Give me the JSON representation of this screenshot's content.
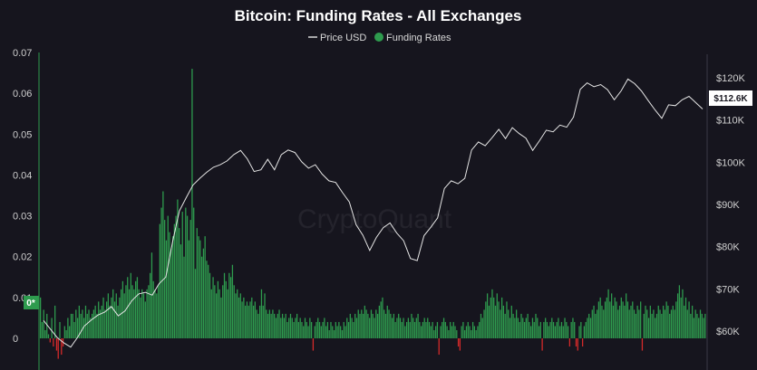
{
  "chart_data": {
    "type": "bar",
    "title": "Bitcoin: Funding Rates - All Exchanges",
    "legend": [
      {
        "label": "Price USD",
        "color": "#d9d9d9",
        "marker": "line"
      },
      {
        "label": "Funding Rates",
        "color": "#2e9b4e",
        "marker": "dot"
      }
    ],
    "legend_position": "top-center",
    "watermark": "CryptoQuant",
    "left_axis": {
      "ticks": [
        0,
        0.01,
        0.02,
        0.03,
        0.04,
        0.05,
        0.06,
        0.07
      ],
      "tick_labels": [
        "0",
        "0.01",
        "0.02",
        "0.03",
        "0.04",
        "0.05",
        "0.06",
        "0.07"
      ],
      "ylim": [
        0,
        0.07
      ]
    },
    "right_axis": {
      "ticks": [
        60000,
        70000,
        80000,
        90000,
        100000,
        110000,
        120000
      ],
      "tick_labels": [
        "$60K",
        "$70K",
        "$80K",
        "$90K",
        "$100K",
        "$110K",
        "$120K"
      ],
      "ylim": [
        58000,
        125000
      ]
    },
    "badges": {
      "funding_current": {
        "label": "0*",
        "value": 0.008,
        "color": "#2e9b4e"
      },
      "price_current": {
        "label": "$112.6K",
        "value": 112600,
        "color": "#ffffff"
      }
    },
    "grid": false,
    "series": [
      {
        "name": "Price USD",
        "type": "line",
        "axis": "right",
        "color": "#e6e6e6",
        "values": [
          [
            0,
            62500
          ],
          [
            1,
            60500
          ],
          [
            2,
            58500
          ],
          [
            3,
            57200
          ],
          [
            4,
            56200
          ],
          [
            5,
            58500
          ],
          [
            6,
            61200
          ],
          [
            7,
            62600
          ],
          [
            8,
            63800
          ],
          [
            9,
            64500
          ],
          [
            10,
            65800
          ],
          [
            11,
            63600
          ],
          [
            12,
            64800
          ],
          [
            13,
            67200
          ],
          [
            14,
            68800
          ],
          [
            15,
            69200
          ],
          [
            16,
            68500
          ],
          [
            17,
            71200
          ],
          [
            18,
            72800
          ],
          [
            19,
            81200
          ],
          [
            20,
            88500
          ],
          [
            21,
            91600
          ],
          [
            22,
            94600
          ],
          [
            23,
            96200
          ],
          [
            24,
            97600
          ],
          [
            25,
            98800
          ],
          [
            26,
            99400
          ],
          [
            27,
            100300
          ],
          [
            28,
            101800
          ],
          [
            29,
            102800
          ],
          [
            30,
            100800
          ],
          [
            31,
            97800
          ],
          [
            32,
            98200
          ],
          [
            33,
            100700
          ],
          [
            34,
            98200
          ],
          [
            35,
            101800
          ],
          [
            36,
            102900
          ],
          [
            37,
            102300
          ],
          [
            38,
            100100
          ],
          [
            39,
            98600
          ],
          [
            40,
            99400
          ],
          [
            41,
            97200
          ],
          [
            42,
            95600
          ],
          [
            43,
            95200
          ],
          [
            44,
            92800
          ],
          [
            45,
            90600
          ],
          [
            46,
            85200
          ],
          [
            47,
            82700
          ],
          [
            48,
            79100
          ],
          [
            49,
            82200
          ],
          [
            50,
            84500
          ],
          [
            51,
            85600
          ],
          [
            52,
            83200
          ],
          [
            53,
            81400
          ],
          [
            54,
            77200
          ],
          [
            55,
            76700
          ],
          [
            56,
            82600
          ],
          [
            57,
            84600
          ],
          [
            58,
            86800
          ],
          [
            59,
            93800
          ],
          [
            60,
            95600
          ],
          [
            61,
            94900
          ],
          [
            62,
            96200
          ],
          [
            63,
            102900
          ],
          [
            64,
            104800
          ],
          [
            65,
            103900
          ],
          [
            66,
            105800
          ],
          [
            67,
            107800
          ],
          [
            68,
            105600
          ],
          [
            69,
            108200
          ],
          [
            70,
            106800
          ],
          [
            71,
            105700
          ],
          [
            72,
            102800
          ],
          [
            73,
            105100
          ],
          [
            74,
            107600
          ],
          [
            75,
            107200
          ],
          [
            76,
            108800
          ],
          [
            77,
            108300
          ],
          [
            78,
            110700
          ],
          [
            79,
            117300
          ],
          [
            80,
            118800
          ],
          [
            81,
            117900
          ],
          [
            82,
            118400
          ],
          [
            83,
            117200
          ],
          [
            84,
            114800
          ],
          [
            85,
            116900
          ],
          [
            86,
            119700
          ],
          [
            87,
            118600
          ],
          [
            88,
            116900
          ],
          [
            89,
            114600
          ],
          [
            90,
            112400
          ],
          [
            91,
            110400
          ],
          [
            92,
            113600
          ],
          [
            93,
            113400
          ],
          [
            94,
            114800
          ],
          [
            95,
            115600
          ],
          [
            96,
            114100
          ],
          [
            97,
            112600
          ]
        ]
      },
      {
        "name": "Funding Rates",
        "type": "bar",
        "axis": "left",
        "positive_color": "#2e9b4e",
        "negative_color": "#d62a2a",
        "values": [
          0.01,
          0.004,
          0.007,
          0.002,
          0.006,
          0.001,
          -0.001,
          0.005,
          -0.002,
          0.008,
          -0.003,
          -0.005,
          0.004,
          -0.004,
          -0.002,
          0.003,
          0.002,
          0.005,
          0.003,
          0.006,
          0.006,
          0.004,
          0.007,
          0.005,
          0.008,
          0.006,
          0.007,
          0.005,
          0.008,
          0.006,
          0.007,
          0.005,
          0.006,
          0.007,
          0.008,
          0.006,
          0.009,
          0.007,
          0.008,
          0.01,
          0.007,
          0.009,
          0.011,
          0.008,
          0.01,
          0.012,
          0.009,
          0.011,
          0.008,
          0.01,
          0.012,
          0.014,
          0.011,
          0.013,
          0.015,
          0.012,
          0.016,
          0.013,
          0.012,
          0.014,
          0.015,
          0.012,
          0.01,
          0.012,
          0.011,
          0.009,
          0.012,
          0.013,
          0.016,
          0.021,
          0.014,
          0.012,
          0.011,
          0.013,
          0.028,
          0.032,
          0.036,
          0.029,
          0.024,
          0.03,
          0.026,
          0.022,
          0.025,
          0.028,
          0.03,
          0.034,
          0.027,
          0.023,
          0.031,
          0.02,
          0.032,
          0.03,
          0.024,
          0.029,
          0.066,
          0.032,
          0.017,
          0.027,
          0.025,
          0.024,
          0.02,
          0.022,
          0.025,
          0.019,
          0.018,
          0.016,
          0.012,
          0.015,
          0.013,
          0.011,
          0.014,
          0.012,
          0.01,
          0.013,
          0.016,
          0.014,
          0.012,
          0.016,
          0.015,
          0.018,
          0.013,
          0.011,
          0.012,
          0.01,
          0.011,
          0.009,
          0.01,
          0.008,
          0.009,
          0.008,
          0.009,
          0.01,
          0.008,
          0.009,
          0.007,
          0.006,
          0.008,
          0.012,
          0.008,
          0.011,
          0.007,
          0.006,
          0.007,
          0.006,
          0.007,
          0.006,
          0.005,
          0.006,
          0.007,
          0.005,
          0.006,
          0.005,
          0.006,
          0.004,
          0.005,
          0.006,
          0.005,
          0.004,
          0.005,
          0.006,
          0.004,
          0.005,
          0.004,
          0.003,
          0.005,
          0.004,
          0.003,
          0.005,
          0.004,
          -0.003,
          0.003,
          0.004,
          0.005,
          0.004,
          0.003,
          0.004,
          0.005,
          0.003,
          0.004,
          0.002,
          0.004,
          0.003,
          0.002,
          0.004,
          0.003,
          0.004,
          0.003,
          0.002,
          0.004,
          0.003,
          0.005,
          0.004,
          0.006,
          0.005,
          0.004,
          0.006,
          0.005,
          0.007,
          0.006,
          0.007,
          0.006,
          0.008,
          0.007,
          0.006,
          0.005,
          0.007,
          0.006,
          0.005,
          0.007,
          0.006,
          0.008,
          0.009,
          0.01,
          0.007,
          0.006,
          0.008,
          0.007,
          0.006,
          0.005,
          0.006,
          0.004,
          0.005,
          0.006,
          0.005,
          0.004,
          0.005,
          0.003,
          0.004,
          0.005,
          0.004,
          0.006,
          0.005,
          0.004,
          0.005,
          0.006,
          0.004,
          0.003,
          0.004,
          0.005,
          0.004,
          0.005,
          0.004,
          0.003,
          0.004,
          0.002,
          0.003,
          0.004,
          -0.004,
          0.003,
          0.004,
          0.005,
          0.004,
          0.003,
          0.002,
          0.004,
          0.003,
          0.004,
          0.003,
          0.002,
          -0.002,
          -0.003,
          0.003,
          0.004,
          0.002,
          0.003,
          0.004,
          0.003,
          0.002,
          0.004,
          0.003,
          0.002,
          0.003,
          0.004,
          0.006,
          0.005,
          0.007,
          0.009,
          0.011,
          0.008,
          0.01,
          0.012,
          0.01,
          0.008,
          0.011,
          0.009,
          0.007,
          0.01,
          0.008,
          0.006,
          0.009,
          0.007,
          0.005,
          0.008,
          0.006,
          0.005,
          0.007,
          0.005,
          0.004,
          0.006,
          0.005,
          0.004,
          0.005,
          0.006,
          0.004,
          0.003,
          0.005,
          0.004,
          0.006,
          0.005,
          0.003,
          0.004,
          -0.003,
          0.004,
          0.005,
          0.004,
          0.003,
          0.004,
          0.005,
          0.004,
          0.003,
          0.004,
          0.005,
          0.003,
          0.004,
          0.003,
          0.005,
          0.004,
          0.003,
          -0.002,
          0.004,
          0.005,
          0.004,
          -0.002,
          -0.003,
          0.003,
          0.004,
          -0.002,
          0.003,
          0.004,
          0.005,
          0.006,
          0.005,
          0.007,
          0.008,
          0.006,
          0.007,
          0.009,
          0.01,
          0.008,
          0.007,
          0.009,
          0.01,
          0.012,
          0.009,
          0.011,
          0.008,
          0.01,
          0.009,
          0.007,
          0.008,
          0.01,
          0.009,
          0.008,
          0.011,
          0.009,
          0.007,
          0.008,
          0.009,
          0.007,
          0.006,
          0.008,
          0.007,
          0.009,
          -0.003,
          0.006,
          0.008,
          0.007,
          0.005,
          0.008,
          0.006,
          0.007,
          0.005,
          0.006,
          0.008,
          0.007,
          0.006,
          0.008,
          0.007,
          0.009,
          0.008,
          0.006,
          0.007,
          0.008,
          0.007,
          0.009,
          0.011,
          0.013,
          0.01,
          0.012,
          0.008,
          0.01,
          0.007,
          0.009,
          0.006,
          0.008,
          0.005,
          0.007,
          0.006,
          0.005,
          0.007,
          0.006,
          0.005,
          0.006
        ]
      }
    ]
  }
}
